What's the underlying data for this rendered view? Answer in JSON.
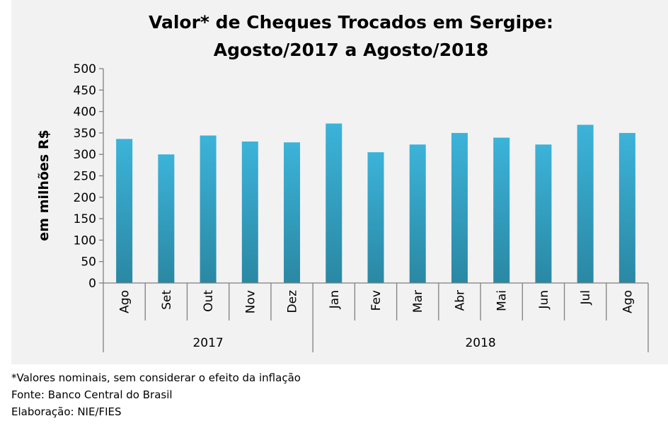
{
  "chart_data": {
    "type": "bar",
    "title": "Valor* de Cheques Trocados em Sergipe:",
    "subtitle": "Agosto/2017 a Agosto/2018",
    "ylabel": "em milhões R$",
    "xlabel": "",
    "ylim": [
      0,
      500
    ],
    "yticks": [
      "0",
      "50",
      "100",
      "150",
      "200",
      "250",
      "300",
      "350",
      "400",
      "450",
      "500"
    ],
    "categories": [
      "Ago",
      "Set",
      "Out",
      "Nov",
      "Dez",
      "Jan",
      "Fev",
      "Mar",
      "Abr",
      "Mai",
      "Jun",
      "Jul",
      "Ago"
    ],
    "values": [
      336,
      300,
      344,
      330,
      328,
      372,
      305,
      323,
      350,
      339,
      323,
      369,
      350
    ],
    "groups": [
      {
        "label": "2017",
        "count": 5
      },
      {
        "label": "2018",
        "count": 8
      }
    ],
    "grid": false,
    "legend": "none",
    "bar_color_top": "#3cb3d9",
    "bar_color_bottom": "#2a88a3"
  },
  "notes": {
    "line1": "*Valores nominais, sem considerar o efeito da inflação",
    "line2": "Fonte: Banco Central do Brasil",
    "line3": "Elaboração: NIE/FIES"
  }
}
